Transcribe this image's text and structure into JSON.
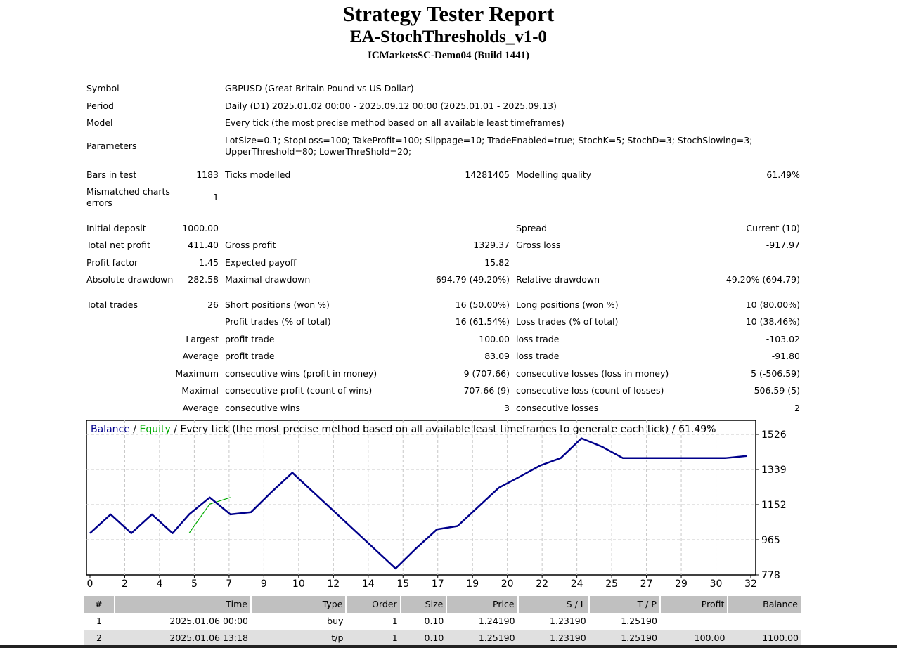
{
  "header": {
    "title": "Strategy Tester Report",
    "ea_name": "EA-StochThresholds_v1-0",
    "server": "ICMarketsSC-Demo04 (Build 1441)"
  },
  "info": {
    "symbol_label": "Symbol",
    "symbol_value": "GBPUSD (Great Britain Pound vs US Dollar)",
    "period_label": "Period",
    "period_value": "Daily (D1) 2025.01.02 00:00 - 2025.09.12 00:00 (2025.01.01 - 2025.09.13)",
    "model_label": "Model",
    "model_value": "Every tick (the most precise method based on all available least timeframes)",
    "parameters_label": "Parameters",
    "parameters_line1": "LotSize=0.1; StopLoss=100; TakeProfit=100; Slippage=10; TradeEnabled=true; StochK=5; StochD=3; StochSlowing=3;",
    "parameters_line2": "UpperThreshold=80; LowerThreShold=20;"
  },
  "stats": {
    "bars_label": "Bars in test",
    "bars_value": "1183",
    "ticks_label": "Ticks modelled",
    "ticks_value": "14281405",
    "quality_label": "Modelling quality",
    "quality_value": "61.49%",
    "mismatch_label_1": "Mismatched charts",
    "mismatch_label_2": "errors",
    "mismatch_value": "1",
    "initial_deposit_label": "Initial deposit",
    "initial_deposit_value": "1000.00",
    "spread_label": "Spread",
    "spread_value": "Current (10)",
    "net_profit_label": "Total net profit",
    "net_profit_value": "411.40",
    "gross_profit_label": "Gross profit",
    "gross_profit_value": "1329.37",
    "gross_loss_label": "Gross loss",
    "gross_loss_value": "-917.97",
    "profit_factor_label": "Profit factor",
    "profit_factor_value": "1.45",
    "expected_payoff_label": "Expected payoff",
    "expected_payoff_value": "15.82",
    "abs_dd_label": "Absolute drawdown",
    "abs_dd_value": "282.58",
    "max_dd_label": "Maximal drawdown",
    "max_dd_value": "694.79 (49.20%)",
    "rel_dd_label": "Relative drawdown",
    "rel_dd_value": "49.20% (694.79)",
    "total_trades_label": "Total trades",
    "total_trades_value": "26",
    "short_label": "Short positions (won %)",
    "short_value": "16 (50.00%)",
    "long_label": "Long positions (won %)",
    "long_value": "10 (80.00%)",
    "profit_trades_label": "Profit trades (% of total)",
    "profit_trades_value": "16 (61.54%)",
    "loss_trades_label": "Loss trades (% of total)",
    "loss_trades_value": "10 (38.46%)",
    "largest_label": "Largest",
    "largest_profit_label": "profit trade",
    "largest_profit_value": "100.00",
    "largest_loss_label": "loss trade",
    "largest_loss_value": "-103.02",
    "average_label": "Average",
    "average_profit_label": "profit trade",
    "average_profit_value": "83.09",
    "average_loss_label": "loss trade",
    "average_loss_value": "-91.80",
    "maximum_label": "Maximum",
    "max_cons_wins_label": "consecutive wins (profit in money)",
    "max_cons_wins_value": "9 (707.66)",
    "max_cons_losses_label": "consecutive losses (loss in money)",
    "max_cons_losses_value": "5 (-506.59)",
    "maximal_label": "Maximal",
    "maximal_cons_profit_label": "consecutive profit (count of wins)",
    "maximal_cons_profit_value": "707.66 (9)",
    "maximal_cons_loss_label": "consecutive loss (count of losses)",
    "maximal_cons_loss_value": "-506.59 (5)",
    "avg_cons_label": "Average",
    "avg_cons_wins_label": "consecutive wins",
    "avg_cons_wins_value": "3",
    "avg_cons_losses_label": "consecutive losses",
    "avg_cons_losses_value": "2"
  },
  "chart_data": {
    "type": "line",
    "legend_balance": "Balance",
    "legend_sep": " / ",
    "legend_equity": "Equity",
    "legend_rest": " / Every tick (the most precise method based on all available least timeframes to generate each tick) / 61.49%",
    "x_ticks": [
      "0",
      "2",
      "4",
      "5",
      "7",
      "9",
      "10",
      "12",
      "14",
      "15",
      "17",
      "19",
      "20",
      "22",
      "24",
      "25",
      "27",
      "29",
      "30",
      "32"
    ],
    "y_ticks": [
      "1526",
      "1339",
      "1152",
      "965",
      "778"
    ],
    "ylim": [
      778,
      1526
    ],
    "grid": true,
    "series": [
      {
        "name": "Balance",
        "color": "#00008b",
        "x": [
          0,
          1,
          2,
          3,
          4,
          4.8,
          5.8,
          6.8,
          7.8,
          8.8,
          9.8,
          10.8,
          11.8,
          12.8,
          13.8,
          14.8,
          15.8,
          16.8,
          17.8,
          18.8,
          19.8,
          20.8,
          21.8,
          22.8,
          23.8,
          24.8,
          25.8,
          26.8,
          27.8,
          28.8,
          29.8,
          30.8,
          31.8
        ],
        "values": [
          1000,
          1100,
          1000,
          1100,
          1000,
          1100,
          1190,
          1100,
          1112,
          1220,
          1322,
          1220,
          1118,
          1016,
          914,
          812,
          920,
          1020,
          1038,
          1140,
          1242,
          1300,
          1360,
          1400,
          1505,
          1460,
          1400,
          1400,
          1400,
          1400,
          1400,
          1400,
          1411
        ]
      },
      {
        "name": "Equity",
        "color": "#00aa00",
        "x": [
          4.8,
          5.8,
          6.8
        ],
        "values": [
          1000,
          1155,
          1190
        ]
      }
    ]
  },
  "deals": {
    "columns": [
      "#",
      "Time",
      "Type",
      "Order",
      "Size",
      "Price",
      "S / L",
      "T / P",
      "Profit",
      "Balance"
    ],
    "rows": [
      [
        "1",
        "2025.01.06 00:00",
        "buy",
        "1",
        "0.10",
        "1.24190",
        "1.23190",
        "1.25190",
        "",
        ""
      ],
      [
        "2",
        "2025.01.06 13:18",
        "t/p",
        "1",
        "0.10",
        "1.25190",
        "1.23190",
        "1.25190",
        "100.00",
        "1100.00"
      ]
    ]
  }
}
